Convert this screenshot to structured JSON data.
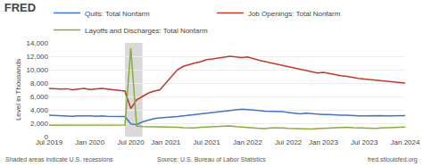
{
  "chart_data": {
    "type": "line",
    "title": "FRED",
    "ylabel": "Level in Thousands",
    "annotations": [
      "Shaded areas indicate U.S. recessions",
      "Source: U.S. Bureau of Labor Statistics",
      "fred.stlouisfed.org"
    ],
    "categories": [
      "Jul 2019",
      null,
      null,
      null,
      null,
      null,
      null,
      "Jan 2020",
      null,
      null,
      null,
      null,
      null,
      null,
      "Jul 2020",
      null,
      null,
      null,
      null,
      null,
      "Jan 2021",
      null,
      null,
      null,
      null,
      null,
      null,
      "Jul 2021",
      null,
      null,
      null,
      null,
      null,
      null,
      "Jan 2022",
      null,
      null,
      null,
      null,
      null,
      null,
      "Jul 2022",
      null,
      null,
      null,
      null,
      null,
      "Jan 2023",
      null,
      null,
      null,
      null,
      null,
      null,
      "Jul 2023",
      null,
      null,
      null,
      null,
      null,
      null,
      "Jan 2024"
    ],
    "series": [
      {
        "name": "Quits: Total Nonfarm",
        "color": "#4472c4",
        "values": [
          3200,
          3150,
          3100,
          3100,
          3050,
          3100,
          3150,
          3100,
          3050,
          3100,
          3050,
          3000,
          2950,
          3000,
          1900,
          1800,
          2200,
          2500,
          2700,
          2800,
          2850,
          2900,
          3000,
          3100,
          3200,
          3300,
          3400,
          3500,
          3700,
          3800,
          3900,
          4000,
          4100,
          4100,
          4050,
          4000,
          3900,
          3800,
          3800,
          3700,
          3750,
          3600,
          3500,
          3400,
          3500,
          3400,
          3300,
          3300,
          3300,
          3200,
          3200,
          3200,
          3100,
          3100,
          3100,
          3150,
          3200,
          3150,
          3100,
          3100,
          3100,
          3150
        ]
      },
      {
        "name": "Job Openings: Total Nonfarm",
        "color": "#c0392b",
        "values": [
          7200,
          7100,
          7100,
          7150,
          7000,
          7100,
          7200,
          7050,
          7100,
          7200,
          7100,
          7000,
          7000,
          6800,
          4200,
          5500,
          6000,
          6500,
          6800,
          7000,
          8000,
          9000,
          10000,
          10500,
          10800,
          11000,
          11200,
          11500,
          11600,
          11700,
          11800,
          12000,
          11900,
          11800,
          11900,
          11600,
          11400,
          11200,
          11000,
          10800,
          10600,
          10400,
          10200,
          10000,
          9800,
          9700,
          9500,
          9600,
          9400,
          9200,
          9100,
          9000,
          8800,
          8700,
          8600,
          8500,
          8400,
          8300,
          8200,
          8100,
          8000,
          8000
        ]
      },
      {
        "name": "Layoffs and Discharges: Total Nonfarm",
        "color": "#8aac3a",
        "values": [
          1700,
          1700,
          1750,
          1700,
          1700,
          1750,
          1800,
          1750,
          1700,
          1750,
          1750,
          1700,
          1700,
          1750,
          13200,
          1600,
          1500,
          1500,
          1400,
          1450,
          1450,
          1400,
          1400,
          1350,
          1300,
          1300,
          1400,
          1450,
          1500,
          1550,
          1600,
          1600,
          1500,
          1400,
          1350,
          1300,
          1250,
          1200,
          1300,
          1350,
          1300,
          1250,
          1200,
          1150,
          1100,
          1150,
          1200,
          1250,
          1300,
          1350,
          1400,
          1400,
          1350,
          1300,
          1250,
          1200,
          1250,
          1300,
          1350,
          1400,
          1450,
          1450
        ]
      }
    ],
    "shaded_ranges": [
      [
        13,
        16
      ]
    ],
    "ylim": [
      0,
      14000
    ],
    "yticks": [
      0,
      {
        "value": 2000,
        "label": "2,000"
      },
      {
        "value": 4000,
        "label": "4,000"
      },
      {
        "value": 6000,
        "label": "6,000"
      },
      {
        "value": 8000,
        "label": "8,000"
      },
      {
        "value": 10000,
        "label": "10,000"
      },
      {
        "value": 12000,
        "label": "12,000"
      },
      {
        "value": 14000,
        "label": "14,000"
      }
    ],
    "grid": true,
    "legend": "top"
  }
}
